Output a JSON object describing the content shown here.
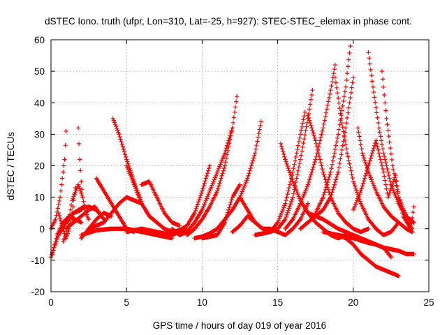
{
  "chart_data": {
    "type": "scatter",
    "title": "dSTEC Iono. truth (ufpr, Lon=310, Lat=-25, h=927): STEC-STEC_elemax in phase cont.",
    "xlabel": "GPS time / hours of day 019 of year 2016",
    "ylabel": "dSTEC  / TECUs",
    "xlim": [
      0,
      25
    ],
    "ylim": [
      -20,
      60
    ],
    "xticks": [
      0,
      5,
      10,
      15,
      20,
      25
    ],
    "yticks": [
      -20,
      -10,
      0,
      10,
      20,
      30,
      40,
      50,
      60
    ],
    "xtick_labels": [
      "0",
      "5",
      "10",
      "15",
      "20",
      "25"
    ],
    "ytick_labels": [
      "-20",
      "-10",
      "0",
      "10",
      "20",
      "30",
      "40",
      "50",
      "60"
    ],
    "grid": true,
    "legend": "none",
    "marker": "plus",
    "color": "#ff0000",
    "series": [
      {
        "x": [
          0.0,
          0.3,
          0.6,
          0.9,
          1.0
        ],
        "y": [
          0.0,
          3.0,
          10.0,
          22.0,
          31.0
        ]
      },
      {
        "x": [
          0.0,
          0.2,
          0.5,
          1.0,
          1.5,
          2.0
        ],
        "y": [
          -9.0,
          -6.0,
          -2.0,
          2.0,
          5.0,
          6.0
        ]
      },
      {
        "x": [
          0.1,
          0.4,
          0.8,
          1.2,
          1.6,
          2.0
        ],
        "y": [
          -8.0,
          -2.0,
          2.0,
          4.0,
          3.0,
          2.0
        ]
      },
      {
        "x": [
          0.5,
          0.8,
          1.0,
          1.2,
          1.4,
          1.6
        ],
        "y": [
          5.0,
          0.0,
          -3.0,
          0.0,
          5.0,
          13.0
        ]
      },
      {
        "x": [
          0.8,
          1.0,
          1.2,
          1.4,
          1.8,
          2.1
        ],
        "y": [
          -4.0,
          -2.0,
          3.0,
          9.0,
          14.0,
          10.0
        ]
      },
      {
        "x": [
          1.8,
          1.9,
          2.0,
          2.1,
          2.3,
          2.5
        ],
        "y": [
          32.0,
          22.0,
          15.0,
          10.0,
          5.0,
          3.0
        ]
      },
      {
        "x": [
          1.0,
          1.5,
          2.0,
          2.5,
          2.9,
          3.2
        ],
        "y": [
          0.0,
          2.0,
          4.0,
          6.0,
          7.0,
          5.0
        ]
      },
      {
        "x": [
          1.5,
          2.0,
          2.5,
          3.0,
          3.5
        ],
        "y": [
          5.0,
          6.5,
          7.0,
          6.0,
          3.0
        ]
      },
      {
        "x": [
          2.0,
          2.5,
          3.0,
          3.5,
          4.0
        ],
        "y": [
          -3.0,
          0.0,
          3.0,
          5.0,
          4.0
        ]
      },
      {
        "x": [
          3.0,
          3.5,
          4.0,
          4.5,
          5.0,
          5.5
        ],
        "y": [
          16.0,
          12.0,
          8.0,
          4.0,
          0.0,
          -1.0
        ]
      },
      {
        "x": [
          2.5,
          3.0,
          3.5,
          4.0,
          4.5,
          5.0,
          5.5,
          6.0
        ],
        "y": [
          0.0,
          1.0,
          2.0,
          5.0,
          8.0,
          10.0,
          9.0,
          8.0
        ]
      },
      {
        "x": [
          4.1,
          4.5,
          5.0,
          5.5,
          6.0,
          6.5,
          7.0,
          7.5
        ],
        "y": [
          35.0,
          30.0,
          22.0,
          15.0,
          8.0,
          4.0,
          2.0,
          0.0
        ]
      },
      {
        "x": [
          5.0,
          5.5,
          6.0,
          6.5,
          7.0
        ],
        "y": [
          20.0,
          14.0,
          8.0,
          4.0,
          2.0
        ]
      },
      {
        "x": [
          6.0,
          6.5,
          7.0,
          7.5,
          8.0,
          8.5
        ],
        "y": [
          14.0,
          15.0,
          10.0,
          5.0,
          2.0,
          1.0
        ]
      },
      {
        "x": [
          2.0,
          3.0,
          4.0,
          5.0,
          6.0,
          7.0,
          8.0
        ],
        "y": [
          -2.0,
          -0.5,
          0.0,
          0.0,
          -1.0,
          -2.0,
          -3.0
        ]
      },
      {
        "x": [
          5.0,
          6.0,
          7.0,
          8.0,
          9.0
        ],
        "y": [
          -1.0,
          0.0,
          -1.0,
          -2.0,
          0.0
        ]
      },
      {
        "x": [
          7.5,
          8.0,
          8.5,
          9.0,
          9.5,
          10.0,
          10.5
        ],
        "y": [
          0.0,
          -1.0,
          -0.5,
          1.0,
          5.0,
          12.0,
          20.0
        ]
      },
      {
        "x": [
          8.0,
          8.5,
          9.0,
          9.5,
          10.0,
          10.5,
          11.0,
          11.5,
          12.0,
          12.3
        ],
        "y": [
          0.0,
          -2.0,
          -1.0,
          2.0,
          6.0,
          12.0,
          18.0,
          24.0,
          32.0,
          42.0
        ]
      },
      {
        "x": [
          9.0,
          9.5,
          10.0,
          10.5,
          11.0,
          11.5,
          12.0
        ],
        "y": [
          -2.0,
          0.0,
          3.0,
          7.0,
          12.0,
          20.0,
          32.0
        ]
      },
      {
        "x": [
          10.0,
          10.5,
          11.0,
          11.5,
          12.0,
          12.5
        ],
        "y": [
          -3.0,
          -2.5,
          -2.0,
          2.0,
          10.0,
          14.0
        ]
      },
      {
        "x": [
          9.5,
          10.0,
          10.5,
          11.0,
          11.5,
          12.0,
          12.5,
          13.0,
          13.5,
          13.9
        ],
        "y": [
          -3.0,
          -2.5,
          -1.5,
          0.0,
          3.0,
          6.0,
          10.0,
          16.0,
          24.0,
          34.0
        ]
      },
      {
        "x": [
          12.0,
          12.5,
          13.0,
          13.5,
          14.0,
          14.5,
          15.0,
          15.5,
          16.0,
          16.5,
          17.0
        ],
        "y": [
          -1.0,
          1.0,
          4.0,
          2.0,
          0.0,
          0.0,
          -1.0,
          -2.0,
          0.0,
          3.0,
          8.0
        ]
      },
      {
        "x": [
          12.5,
          13.0,
          13.5,
          14.0
        ],
        "y": [
          10.0,
          6.0,
          2.0,
          0.0
        ]
      },
      {
        "x": [
          15.2,
          15.5,
          16.0,
          16.5,
          17.0,
          17.5,
          18.0,
          18.5,
          19.0,
          19.5
        ],
        "y": [
          27.0,
          22.0,
          15.0,
          9.0,
          5.0,
          2.0,
          0.0,
          -2.0,
          -3.0,
          -2.0
        ]
      },
      {
        "x": [
          13.5,
          14.0,
          14.5,
          15.0,
          15.5,
          16.0,
          16.5,
          16.8
        ],
        "y": [
          -2.0,
          -1.5,
          -1.0,
          2.0,
          8.0,
          18.0,
          30.0,
          37.0
        ]
      },
      {
        "x": [
          14.5,
          15.0,
          15.5,
          16.0,
          16.5,
          17.0,
          17.3
        ],
        "y": [
          -1.0,
          0.0,
          3.0,
          10.0,
          22.0,
          35.0,
          44.0
        ]
      },
      {
        "x": [
          15.5,
          16.0,
          16.5,
          17.0,
          17.5,
          18.0,
          18.5,
          18.8
        ],
        "y": [
          0.0,
          3.0,
          8.0,
          14.0,
          22.0,
          32.0,
          44.0,
          52.0
        ]
      },
      {
        "x": [
          16.5,
          17.0,
          17.5,
          18.0,
          18.5,
          19.0,
          19.5,
          20.0
        ],
        "y": [
          0.0,
          2.0,
          4.0,
          6.0,
          10.0,
          18.0,
          32.0,
          48.0
        ]
      },
      {
        "x": [
          17.5,
          18.0,
          18.5,
          19.0,
          19.5,
          19.8
        ],
        "y": [
          5.0,
          10.0,
          18.0,
          30.0,
          45.0,
          58.0
        ]
      },
      {
        "x": [
          17.0,
          17.5,
          18.0,
          18.5,
          19.0,
          19.5,
          20.0,
          20.5,
          21.0
        ],
        "y": [
          36.0,
          28.0,
          18.0,
          10.0,
          5.0,
          2.0,
          0.0,
          -1.0,
          0.0
        ]
      },
      {
        "x": [
          18.8,
          19.2,
          19.6,
          20.0,
          20.5,
          21.0,
          21.5,
          22.0,
          22.5,
          23.0
        ],
        "y": [
          48.0,
          35.0,
          24.0,
          15.0,
          8.0,
          3.0,
          0.0,
          -2.0,
          -1.0,
          2.0
        ]
      },
      {
        "x": [
          20.3,
          20.6,
          21.0,
          21.5,
          22.0,
          22.5,
          23.0,
          23.5,
          23.9
        ],
        "y": [
          32.0,
          24.0,
          18.0,
          12.0,
          7.0,
          4.0,
          2.0,
          0.0,
          -1.0
        ]
      },
      {
        "x": [
          21.0,
          21.3,
          21.7,
          22.0,
          22.5,
          23.0,
          23.5,
          24.0
        ],
        "y": [
          56.0,
          45.0,
          32.0,
          24.0,
          14.0,
          8.0,
          4.0,
          2.0
        ]
      },
      {
        "x": [
          21.9,
          22.2,
          22.6,
          23.0,
          23.5,
          23.9
        ],
        "y": [
          50.0,
          35.0,
          20.0,
          10.0,
          4.0,
          0.0
        ]
      },
      {
        "x": [
          20.0,
          20.5,
          21.0,
          21.5,
          22.0,
          22.3,
          22.8,
          23.0,
          23.3,
          23.8,
          24.0
        ],
        "y": [
          6.0,
          12.0,
          20.0,
          28.0,
          18.0,
          10.0,
          17.0,
          10.0,
          4.0,
          0.0,
          7.0
        ]
      },
      {
        "x": [
          17.0,
          18.0,
          19.0,
          20.0,
          20.5,
          21.0,
          21.5,
          22.0,
          22.5,
          23.0,
          23.5,
          24.0
        ],
        "y": [
          5.0,
          3.0,
          0.0,
          -2.0,
          -3.0,
          -4.0,
          -5.0,
          -6.0,
          -6.5,
          -7.0,
          -8.0,
          -8.0
        ]
      },
      {
        "x": [
          19.0,
          19.5,
          20.0,
          20.5,
          21.0,
          21.5,
          22.0,
          22.5,
          23.0
        ],
        "y": [
          -2.0,
          -3.0,
          -5.0,
          -8.0,
          -10.0,
          -12.0,
          -13.0,
          -14.0,
          -15.0
        ]
      },
      {
        "x": [
          18.0,
          19.0,
          20.0,
          21.0,
          21.5,
          22.0,
          22.5
        ],
        "y": [
          -1.0,
          -2.0,
          -3.0,
          -4.5,
          -5.0,
          -6.0,
          -9.0
        ]
      }
    ]
  }
}
